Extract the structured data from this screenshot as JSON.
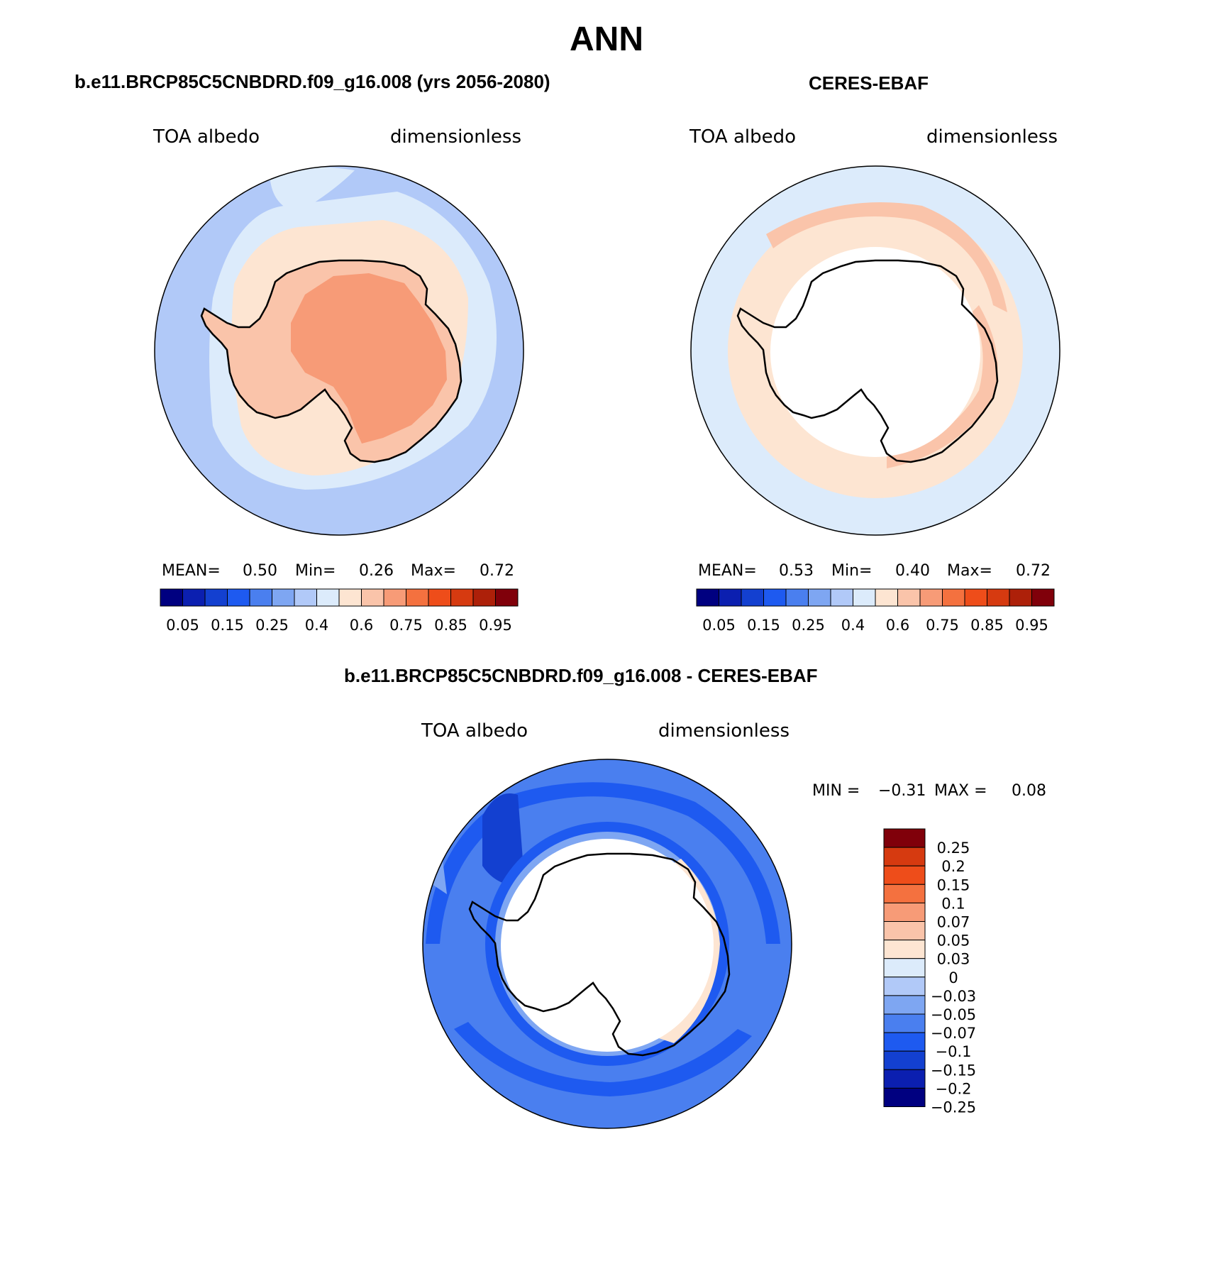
{
  "title": "ANN",
  "colors": {
    "cmap": [
      "#000080",
      "#0b1fb0",
      "#1340d0",
      "#1e5af0",
      "#4a7fef",
      "#7ea6f2",
      "#b1c9f8",
      "#dcebfb",
      "#fde5d2",
      "#fac4aa",
      "#f79b77",
      "#f4713f",
      "#ee4d1a",
      "#d63a10",
      "#ad2009",
      "#80000a"
    ],
    "diff_cmap": [
      "#000080",
      "#0b1fb0",
      "#1340d0",
      "#1e5af0",
      "#4a7fef",
      "#7ea6f2",
      "#b1c9f8",
      "#dcebfb",
      "#fde5d2",
      "#fac4aa",
      "#f79b77",
      "#f4713f",
      "#ee4d1a",
      "#d63a10",
      "#80000a"
    ]
  },
  "panels": [
    {
      "title": "b.e11.BRCP85C5CNBDRD.f09_g16.008 (yrs 2056-2080)",
      "variable": "TOA albedo",
      "units": "dimensionless",
      "stats": {
        "mean_label": "MEAN=",
        "mean": "0.50",
        "min_label": "Min=",
        "min": "0.26",
        "max_label": "Max=",
        "max": "0.72"
      },
      "colorbar_ticks": [
        "0.05",
        "0.15",
        "0.25",
        "0.4",
        "0.6",
        "0.75",
        "0.85",
        "0.95"
      ]
    },
    {
      "title": "CERES-EBAF",
      "variable": "TOA albedo",
      "units": "dimensionless",
      "stats": {
        "mean_label": "MEAN=",
        "mean": "0.53",
        "min_label": "Min=",
        "min": "0.40",
        "max_label": "Max=",
        "max": "0.72"
      },
      "colorbar_ticks": [
        "0.05",
        "0.15",
        "0.25",
        "0.4",
        "0.6",
        "0.75",
        "0.85",
        "0.95"
      ]
    }
  ],
  "diff_panel": {
    "title": "b.e11.BRCP85C5CNBDRD.f09_g16.008 - CERES-EBAF",
    "variable": "TOA albedo",
    "units": "dimensionless",
    "min_label": "MIN =",
    "min": "−0.31",
    "max_label": "MAX =",
    "max": "0.08",
    "colorbar_ticks": [
      "0.25",
      "0.2",
      "0.15",
      "0.1",
      "0.07",
      "0.05",
      "0.03",
      "0",
      "−0.03",
      "−0.05",
      "−0.07",
      "−0.1",
      "−0.15",
      "−0.2",
      "−0.25"
    ]
  }
}
